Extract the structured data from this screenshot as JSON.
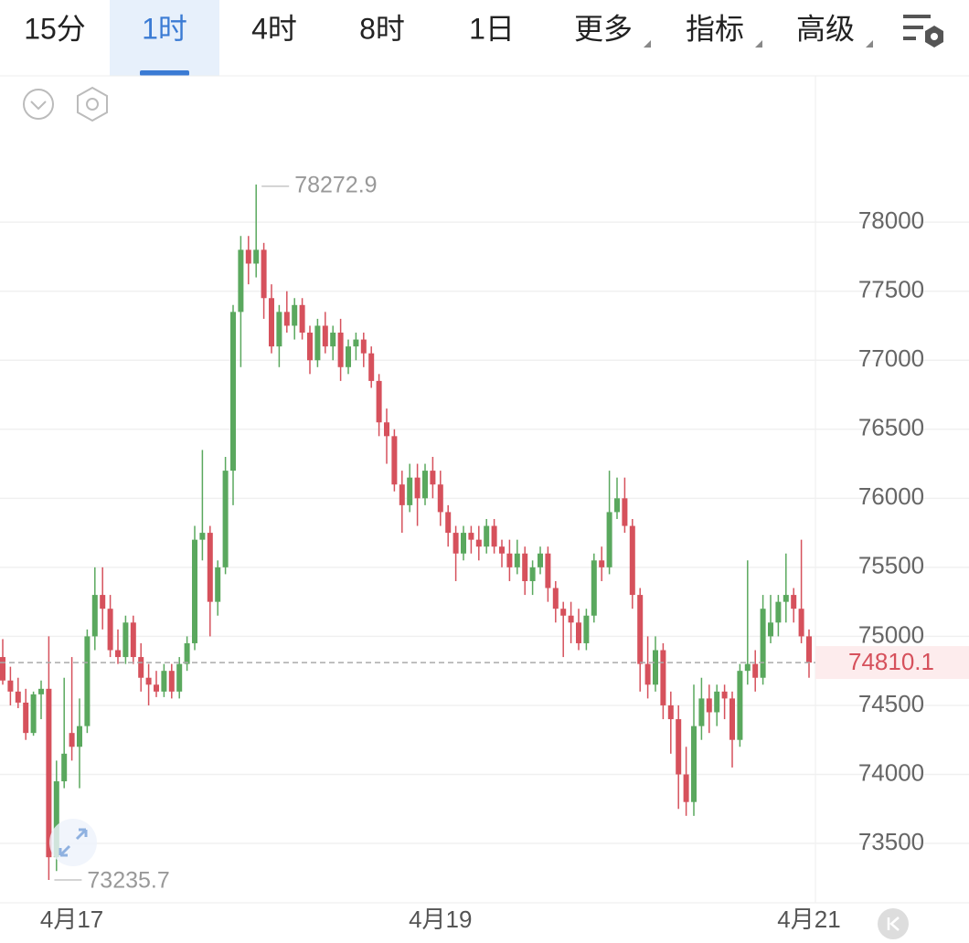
{
  "tabs": [
    "15分",
    "1时",
    "4时",
    "8时",
    "1日",
    "更多",
    "指标",
    "高级"
  ],
  "active_tab": 1,
  "chart_data": {
    "type": "candlestick",
    "up_color": "#5aa85e",
    "down_color": "#d6515c",
    "grid": true,
    "categories": [
      null,
      null,
      null,
      null,
      null,
      null,
      null,
      null,
      null,
      "4月17",
      null,
      null,
      null,
      null,
      null,
      null,
      null,
      null,
      null,
      null,
      null,
      null,
      null,
      null,
      null,
      null,
      null,
      null,
      null,
      null,
      null,
      null,
      null,
      null,
      null,
      null,
      null,
      null,
      null,
      null,
      null,
      null,
      null,
      null,
      null,
      null,
      null,
      null,
      null,
      null,
      null,
      null,
      null,
      null,
      null,
      null,
      null,
      "4月19",
      null,
      null,
      null,
      null,
      null,
      null,
      null,
      null,
      null,
      null,
      null,
      null,
      null,
      null,
      null,
      null,
      null,
      null,
      null,
      null,
      null,
      null,
      null,
      null,
      null,
      null,
      null,
      null,
      null,
      null,
      null,
      null,
      null,
      null,
      null,
      null,
      null,
      null,
      null,
      null,
      null,
      null,
      null,
      null,
      null,
      null,
      null,
      "4月21"
    ],
    "open": [
      74850,
      74680,
      74600,
      74520,
      74300,
      74580,
      74620,
      73400,
      73950,
      74300,
      74200,
      74350,
      75000,
      75300,
      75200,
      74900,
      74850,
      75100,
      74850,
      74700,
      74650,
      74600,
      74750,
      74600,
      74800,
      74950,
      75700,
      75750,
      75250,
      75500,
      76200,
      77350,
      77800,
      77700,
      77800,
      77450,
      77100,
      77350,
      77250,
      77400,
      77200,
      77000,
      77250,
      77100,
      77200,
      76950,
      77100,
      77150,
      77050,
      76850,
      76550,
      76450,
      76100,
      75950,
      76150,
      76000,
      76200,
      76100,
      75900,
      75750,
      75600,
      75750,
      75700,
      75650,
      75800,
      75650,
      75600,
      75500,
      75600,
      75400,
      75500,
      75600,
      75350,
      75200,
      75150,
      75100,
      74950,
      75150,
      75550,
      75500,
      75900,
      76000,
      75800,
      75300,
      74800,
      74650,
      74900,
      74500,
      74400,
      74000,
      73800,
      74350,
      74550,
      74450,
      74600,
      74550,
      74250,
      74750,
      74800,
      74700,
      75000,
      75100,
      75250,
      75300,
      75200,
      75000
    ],
    "high": [
      74980,
      74780,
      74700,
      74620,
      74600,
      74680,
      75000,
      74100,
      74700,
      74850,
      74550,
      75050,
      75500,
      75500,
      75300,
      75050,
      75150,
      75150,
      74950,
      74800,
      74750,
      74800,
      74800,
      74850,
      75000,
      75800,
      76350,
      75800,
      75550,
      76300,
      77400,
      77900,
      77900,
      78272.9,
      77850,
      77550,
      77400,
      77500,
      77450,
      77450,
      77250,
      77300,
      77350,
      77250,
      77300,
      77150,
      77200,
      77200,
      77100,
      76900,
      76650,
      76500,
      76200,
      76250,
      76250,
      76250,
      76300,
      76200,
      75950,
      75800,
      75800,
      75800,
      75800,
      75850,
      75850,
      75700,
      75700,
      75700,
      75650,
      75550,
      75650,
      75650,
      75400,
      75250,
      75250,
      75200,
      75200,
      75600,
      75650,
      76200,
      76150,
      76150,
      75850,
      75350,
      75000,
      75000,
      74950,
      74600,
      74500,
      74200,
      74650,
      74700,
      74650,
      74650,
      74650,
      74600,
      74800,
      75550,
      74900,
      75300,
      75300,
      75300,
      75600,
      75350,
      75700,
      75050
    ],
    "low": [
      74650,
      74500,
      74480,
      74250,
      74280,
      74400,
      73235.7,
      73300,
      73900,
      74100,
      73900,
      74300,
      74900,
      75050,
      74850,
      74800,
      74800,
      74800,
      74600,
      74500,
      74560,
      74560,
      74550,
      74550,
      74750,
      74900,
      75550,
      75000,
      75150,
      75450,
      75950,
      76950,
      77550,
      77600,
      77300,
      77050,
      76950,
      77200,
      77150,
      77150,
      76900,
      76950,
      77050,
      77000,
      76850,
      76900,
      77000,
      76950,
      76800,
      76450,
      76250,
      76050,
      75750,
      75900,
      75800,
      75950,
      76000,
      75800,
      75650,
      75400,
      75550,
      75600,
      75550,
      75600,
      75600,
      75500,
      75400,
      75450,
      75300,
      75300,
      75450,
      75250,
      75100,
      74850,
      74950,
      74900,
      74900,
      75100,
      75400,
      75450,
      75850,
      75750,
      75200,
      74600,
      74550,
      74600,
      74400,
      74150,
      73750,
      73700,
      73700,
      74250,
      74300,
      74350,
      74400,
      74050,
      74200,
      74650,
      74600,
      74650,
      74950,
      75000,
      75100,
      75100,
      74950,
      74700
    ],
    "close": [
      74680,
      74600,
      74520,
      74300,
      74580,
      74620,
      73400,
      73950,
      74150,
      74200,
      74350,
      75000,
      75300,
      75200,
      74900,
      74850,
      75100,
      74850,
      74700,
      74650,
      74600,
      74750,
      74600,
      74800,
      74950,
      75700,
      75750,
      75250,
      75500,
      76200,
      77350,
      77800,
      77700,
      77800,
      77450,
      77100,
      77350,
      77250,
      77400,
      77200,
      77000,
      77250,
      77100,
      77200,
      76950,
      77100,
      77150,
      77050,
      76850,
      76550,
      76450,
      76100,
      75950,
      76150,
      76000,
      76200,
      76100,
      75900,
      75750,
      75600,
      75750,
      75700,
      75650,
      75800,
      75650,
      75600,
      75500,
      75600,
      75400,
      75500,
      75600,
      75350,
      75200,
      75150,
      75100,
      74950,
      75150,
      75550,
      75500,
      75900,
      76000,
      75800,
      75300,
      74800,
      74650,
      74900,
      74500,
      74400,
      74000,
      73800,
      74350,
      74550,
      74450,
      74600,
      74550,
      74250,
      74750,
      74800,
      74700,
      75200,
      75100,
      75250,
      75300,
      75200,
      75000,
      74810.1
    ],
    "ylim": [
      73070,
      79060
    ],
    "yticks": [
      73500,
      74000,
      74500,
      75000,
      75500,
      76000,
      76500,
      77000,
      77500,
      78000
    ],
    "max_annotation": 78272.9,
    "min_annotation": 73235.7,
    "last_price": 74810.1
  }
}
